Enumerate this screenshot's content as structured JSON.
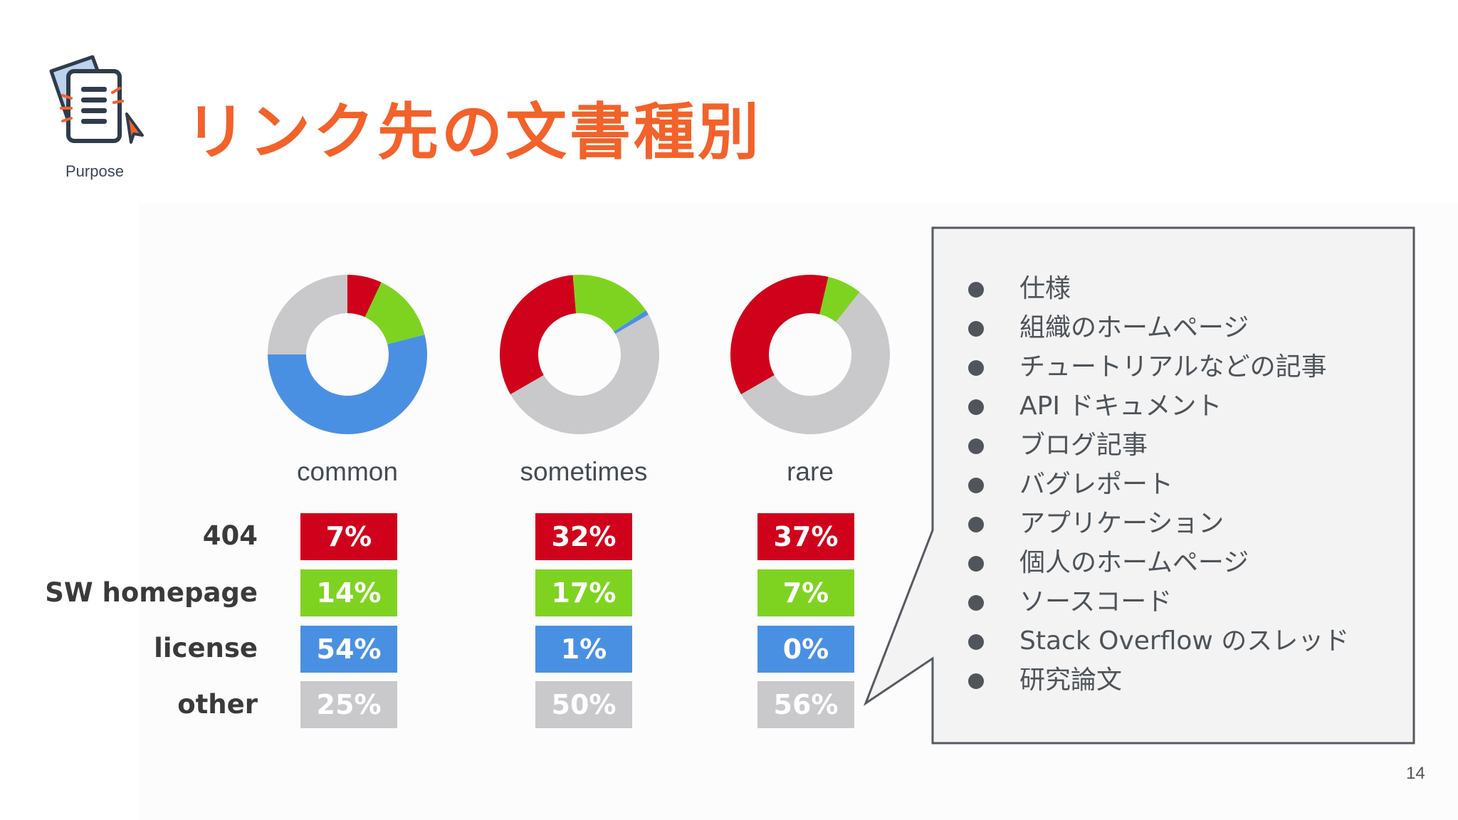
{
  "slide": {
    "title": "リンク先の文書種別",
    "logo_caption": "Purpose",
    "page_number": "14"
  },
  "colors": {
    "title": "#f2622a",
    "404": "#d0021b",
    "sw_homepage": "#7ed321",
    "license": "#4a90e2",
    "other": "#c9c8cb"
  },
  "chart_data": {
    "type": "pie",
    "variant": "donut",
    "categories": [
      "common",
      "sometimes",
      "rare"
    ],
    "series": [
      {
        "name": "404",
        "values": [
          7,
          32,
          37
        ],
        "labels": [
          "7%",
          "32%",
          "37%"
        ]
      },
      {
        "name": "SW homepage",
        "values": [
          14,
          17,
          7
        ],
        "labels": [
          "14%",
          "17%",
          "7%"
        ]
      },
      {
        "name": "license",
        "values": [
          54,
          1,
          0
        ],
        "labels": [
          "54%",
          "1%",
          "0%"
        ]
      },
      {
        "name": "other",
        "values": [
          25,
          50,
          56
        ],
        "labels": [
          "25%",
          "50%",
          "56%"
        ]
      }
    ],
    "donut_start_angles_deg": [
      90,
      210,
      210
    ]
  },
  "callout": {
    "items": [
      "仕様",
      "組織のホームページ",
      "チュートリアルなどの記事",
      "API ドキュメント",
      "ブログ記事",
      "バグレポート",
      "アプリケーション",
      "個人のホームページ",
      "ソースコード",
      "Stack Overflow のスレッド",
      "研究論文"
    ]
  },
  "icons": {
    "logo": "document-cursor-icon",
    "bullet": "bullet-dot-icon"
  }
}
